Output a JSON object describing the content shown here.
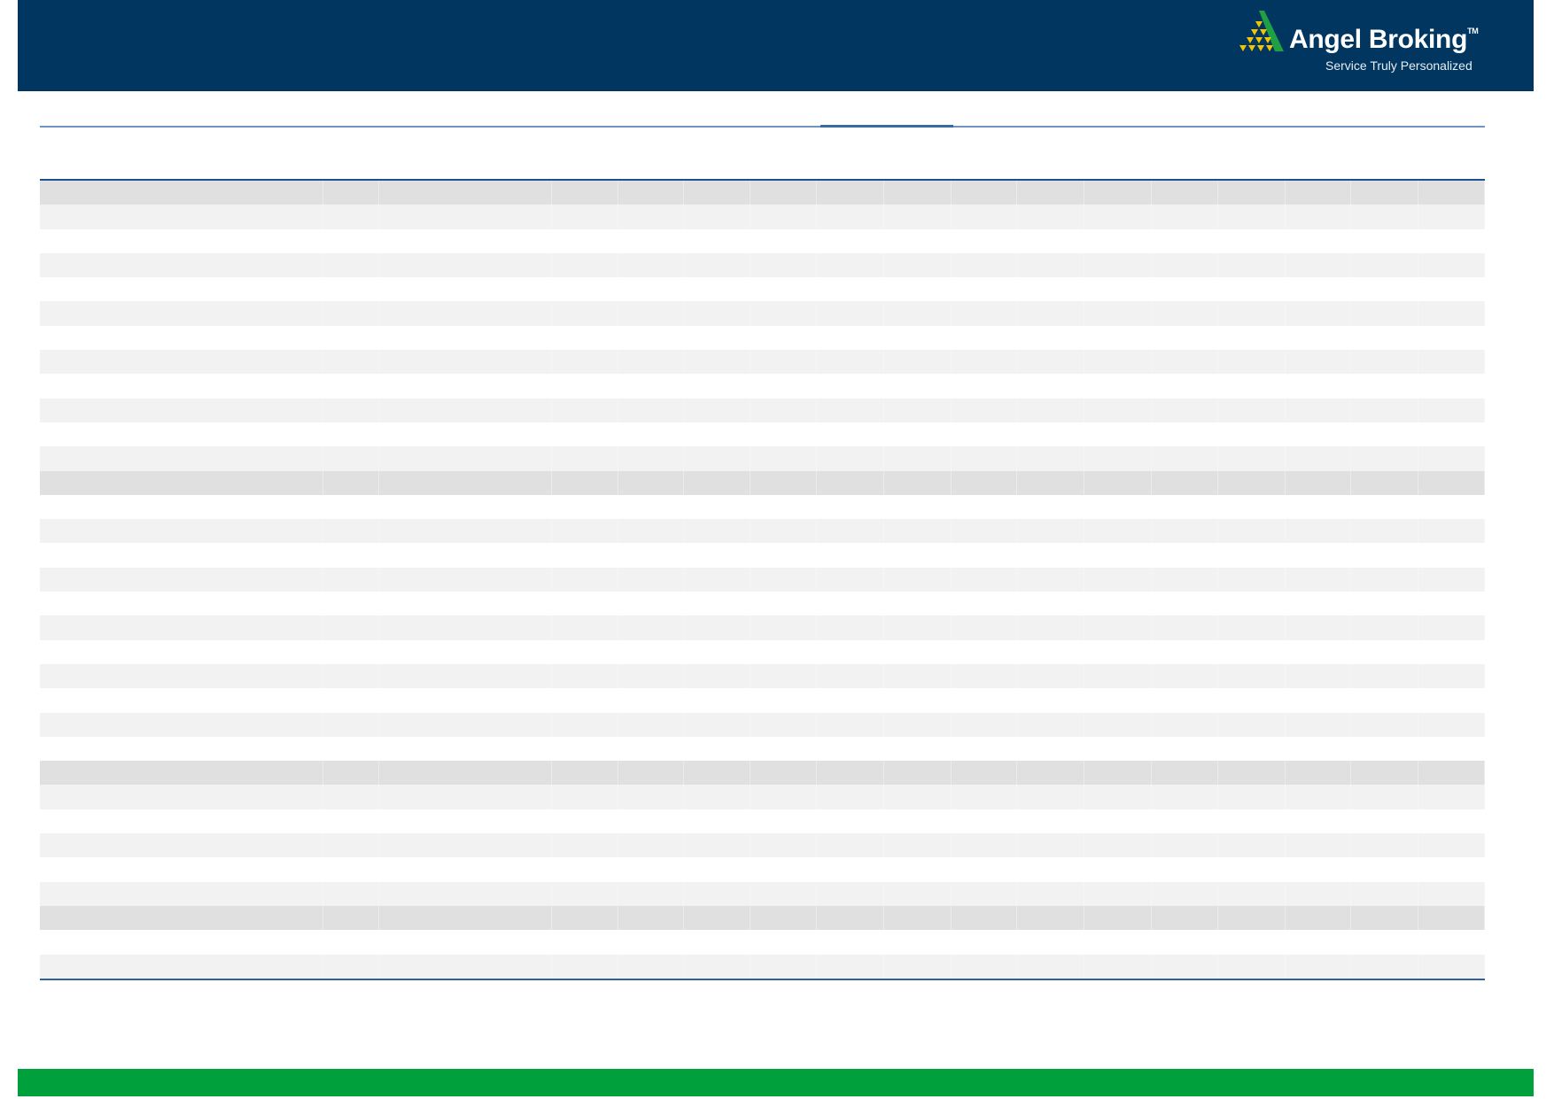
{
  "header": {
    "brand_name": "Angel Broking",
    "trademark": "TM",
    "tagline": "Service Truly Personalized",
    "logo_icon": "pyramid-triangle-logo"
  },
  "colors": {
    "header_bg": "#003660",
    "footer_bg": "#00a03c",
    "logo_green": "#1fa045",
    "logo_yellow": "#f5c400",
    "rule_blue": "#1f4f8f"
  }
}
